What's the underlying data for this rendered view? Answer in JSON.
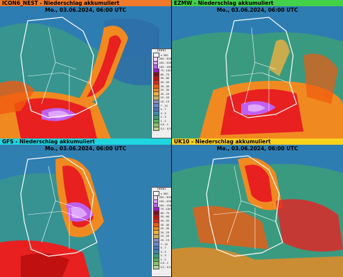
{
  "panels": [
    {
      "model_title": "ICON6_NEST - Niederschlag akkumuliert",
      "date": "Mo., 03.06.2024, 06:00 UTC",
      "header_color": "#f07a2a",
      "has_legend": true
    },
    {
      "model_title": "EZMW - Niederschlag akkumuliert",
      "date": "Mo., 03.06.2024, 06:00 UTC",
      "header_color": "#44d14a",
      "has_legend": false
    },
    {
      "model_title": "GFS - Niederschlag akkumuliert",
      "date": "Mo., 03.06.2024, 06:00 UTC",
      "header_color": "#1fd6e0",
      "has_legend": true
    },
    {
      "model_title": "UK10 - Niederschlag akkumuliert",
      "date": "Mo., 03.06.2024, 06:00 UTC",
      "header_color": "#ffd21f",
      "has_legend": false
    }
  ],
  "legend": {
    "unit": "(mm)",
    "entries": [
      {
        "label": "> 300",
        "color": "#ffffff"
      },
      {
        "label": "200 - 300",
        "color": "#f2d8ff"
      },
      {
        "label": "150 - 200",
        "color": "#dfa6ff"
      },
      {
        "label": "100 - 150",
        "color": "#c060f0"
      },
      {
        "label": "75 - 100",
        "color": "#9a20c8"
      },
      {
        "label": "60 - 75",
        "color": "#8a0a20"
      },
      {
        "label": "50 - 60",
        "color": "#c01010"
      },
      {
        "label": "40 - 50",
        "color": "#e82020"
      },
      {
        "label": "30 - 40",
        "color": "#f05a10"
      },
      {
        "label": "25 - 30",
        "color": "#f08a20"
      },
      {
        "label": "20 - 25",
        "color": "#f0b040"
      },
      {
        "label": "15 - 20",
        "color": "#c8b060"
      },
      {
        "label": "10 - 15",
        "color": "#8890c0"
      },
      {
        "label": "7 - 10",
        "color": "#6a88c8"
      },
      {
        "label": "5 - 7",
        "color": "#4a78c0"
      },
      {
        "label": "3 - 5",
        "color": "#3d8ab0"
      },
      {
        "label": "2 - 3",
        "color": "#3aa080"
      },
      {
        "label": "1 - 2",
        "color": "#5ab060"
      },
      {
        "label": "0,5 - 1",
        "color": "#8ac070"
      },
      {
        "label": "0,1 - 0,5",
        "color": "#b8d898"
      }
    ]
  }
}
